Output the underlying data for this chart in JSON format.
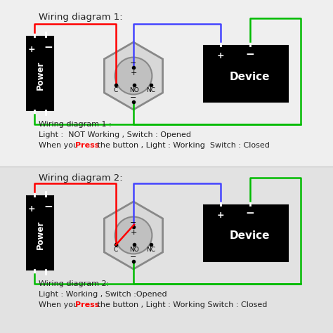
{
  "bg_color_top": "#f0f0f0",
  "bg_color_bottom": "#e0e0e0",
  "title1": "Wiring diagram 1:",
  "title2": "Wiring diagram 2:",
  "desc1_line1": "Wiring diagram 1 :",
  "desc1_line2": "Light :  NOT Working , Switch : Opened",
  "desc1_line3_pre": "When you ",
  "desc1_press": "Press",
  "desc1_line3_post": " the button , Light : Working  Switch : Closed",
  "desc2_line1": "Wiring diagram 2:",
  "desc2_line2": "Light : Working , Switch :Opened",
  "desc2_line3_pre": "When you ",
  "desc2_press": "Press",
  "desc2_line3_post": " the button , Light : Working Switch : Closed",
  "black": "#000000",
  "white": "#ffffff",
  "red": "#ff0000",
  "green": "#00bb00",
  "blue": "#4444ff",
  "gray": "#888888",
  "text_color": "#222222",
  "press_color": "#ff0000"
}
